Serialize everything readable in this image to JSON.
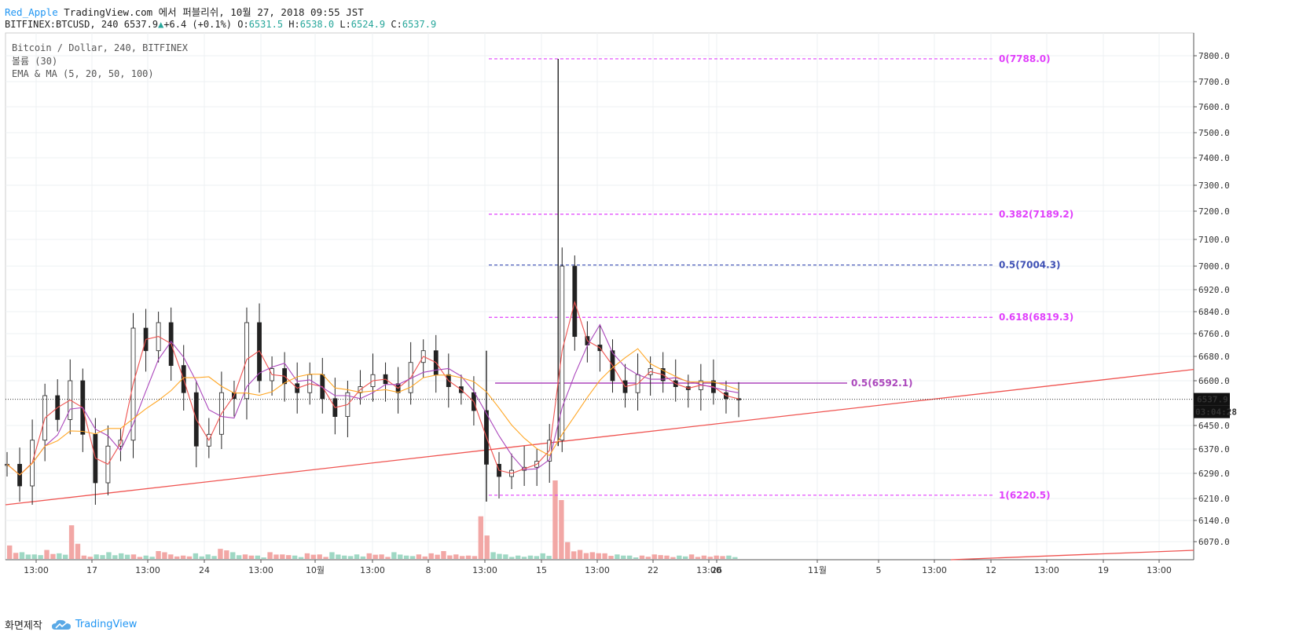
{
  "header": {
    "user": "Red_Apple",
    "publish_text": "TradingView.com 에서 퍼블리쉬, 10월 27, 2018 09:55 JST",
    "symbol_line": "BITFINEX:BTCUSD, 240 6537.9",
    "change": "+6.4 (+0.1%)",
    "o_label": "O:",
    "o_value": "6531.5",
    "h_label": "H:",
    "h_value": "6538.0",
    "l_label": "L:",
    "l_value": "6524.9",
    "c_label": "C:",
    "c_value": "6537.9"
  },
  "legend": {
    "line1": "Bitcoin / Dollar, 240, BITFINEX",
    "line2": "볼륨 (30)",
    "line3": "EMA & MA (5, 20, 50, 100)"
  },
  "footer": {
    "left": "화면제작",
    "brand": "TradingView"
  },
  "chart_data": {
    "type": "line",
    "price_label": "6537.9",
    "countdown_label": "03:04:28",
    "y_ticks": [
      "7800.0",
      "7700.0",
      "7600.0",
      "7500.0",
      "7400.0",
      "7300.0",
      "7200.0",
      "7100.0",
      "7000.0",
      "6920.0",
      "6840.0",
      "6760.0",
      "6680.0",
      "6600.0",
      "6450.0",
      "6370.0",
      "6290.0",
      "6210.0",
      "6140.0",
      "6070.0"
    ],
    "x_ticks": [
      "13:00",
      "17",
      "13:00",
      "24",
      "13:00",
      "10월",
      "13:00",
      "8",
      "13:00",
      "15",
      "13:00",
      "22",
      "13:00",
      "26",
      "11월",
      "5",
      "13:00",
      "12",
      "13:00",
      "19",
      "13:00"
    ],
    "fib_levels": [
      {
        "label": "0(7788.0)",
        "value": 7788.0,
        "color": "#e040fb"
      },
      {
        "label": "0.382(7189.2)",
        "value": 7189.2,
        "color": "#e040fb"
      },
      {
        "label": "0.5(7004.3)",
        "value": 7004.3,
        "color": "#3f51b5"
      },
      {
        "label": "0.618(6819.3)",
        "value": 6819.3,
        "color": "#e040fb"
      },
      {
        "label": "1(6220.5)",
        "value": 6220.5,
        "color": "#e040fb"
      }
    ],
    "mid_line": {
      "label": "0.5(6592.1)",
      "value": 6592.1,
      "color": "#ab47bc"
    },
    "last_price": 6537.9,
    "trendline": {
      "color": "#ef5350"
    },
    "price_path": [
      6320,
      6250,
      6400,
      6550,
      6470,
      6600,
      6420,
      6260,
      6380,
      6400,
      6780,
      6700,
      6800,
      6650,
      6560,
      6380,
      6420,
      6560,
      6540,
      6800,
      6600,
      6640,
      6590,
      6560,
      6620,
      6540,
      6480,
      6560,
      6580,
      6620,
      6590,
      6560,
      6660,
      6700,
      6620,
      6580,
      6560,
      6500,
      6320,
      6280,
      6300,
      6310,
      6330,
      6400,
      7000,
      6750,
      6720,
      6700,
      6600,
      6560,
      6620,
      6640,
      6600,
      6580,
      6570,
      6600,
      6560,
      6540,
      6538
    ],
    "vol_spikes": [
      120,
      60,
      40,
      80,
      50,
      300,
      30,
      40,
      60,
      50,
      40,
      30,
      70,
      40,
      30,
      50,
      40,
      90,
      60,
      40,
      30,
      60,
      40,
      30,
      50,
      40,
      60,
      30,
      40,
      50,
      40,
      60,
      30,
      40,
      50,
      70,
      40,
      30,
      380,
      60,
      40,
      30,
      30,
      50,
      700,
      150,
      80,
      60,
      50,
      40,
      30,
      30,
      40,
      30,
      30,
      40,
      30,
      30,
      30
    ]
  }
}
